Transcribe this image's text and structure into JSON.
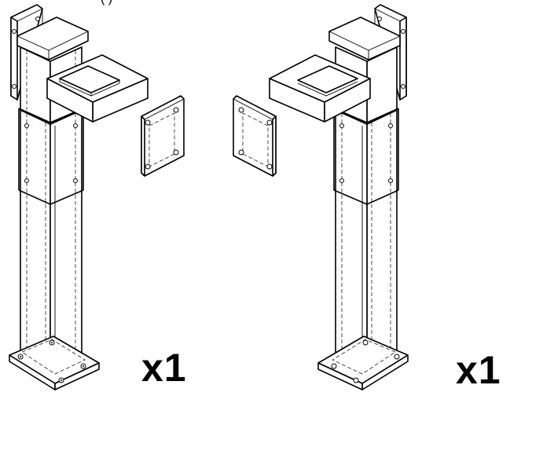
{
  "figure": {
    "top_cut_text": "(        )",
    "items": [
      {
        "id": "post-left",
        "quantity_label": "x1"
      },
      {
        "id": "post-right",
        "quantity_label": "x1"
      }
    ]
  }
}
